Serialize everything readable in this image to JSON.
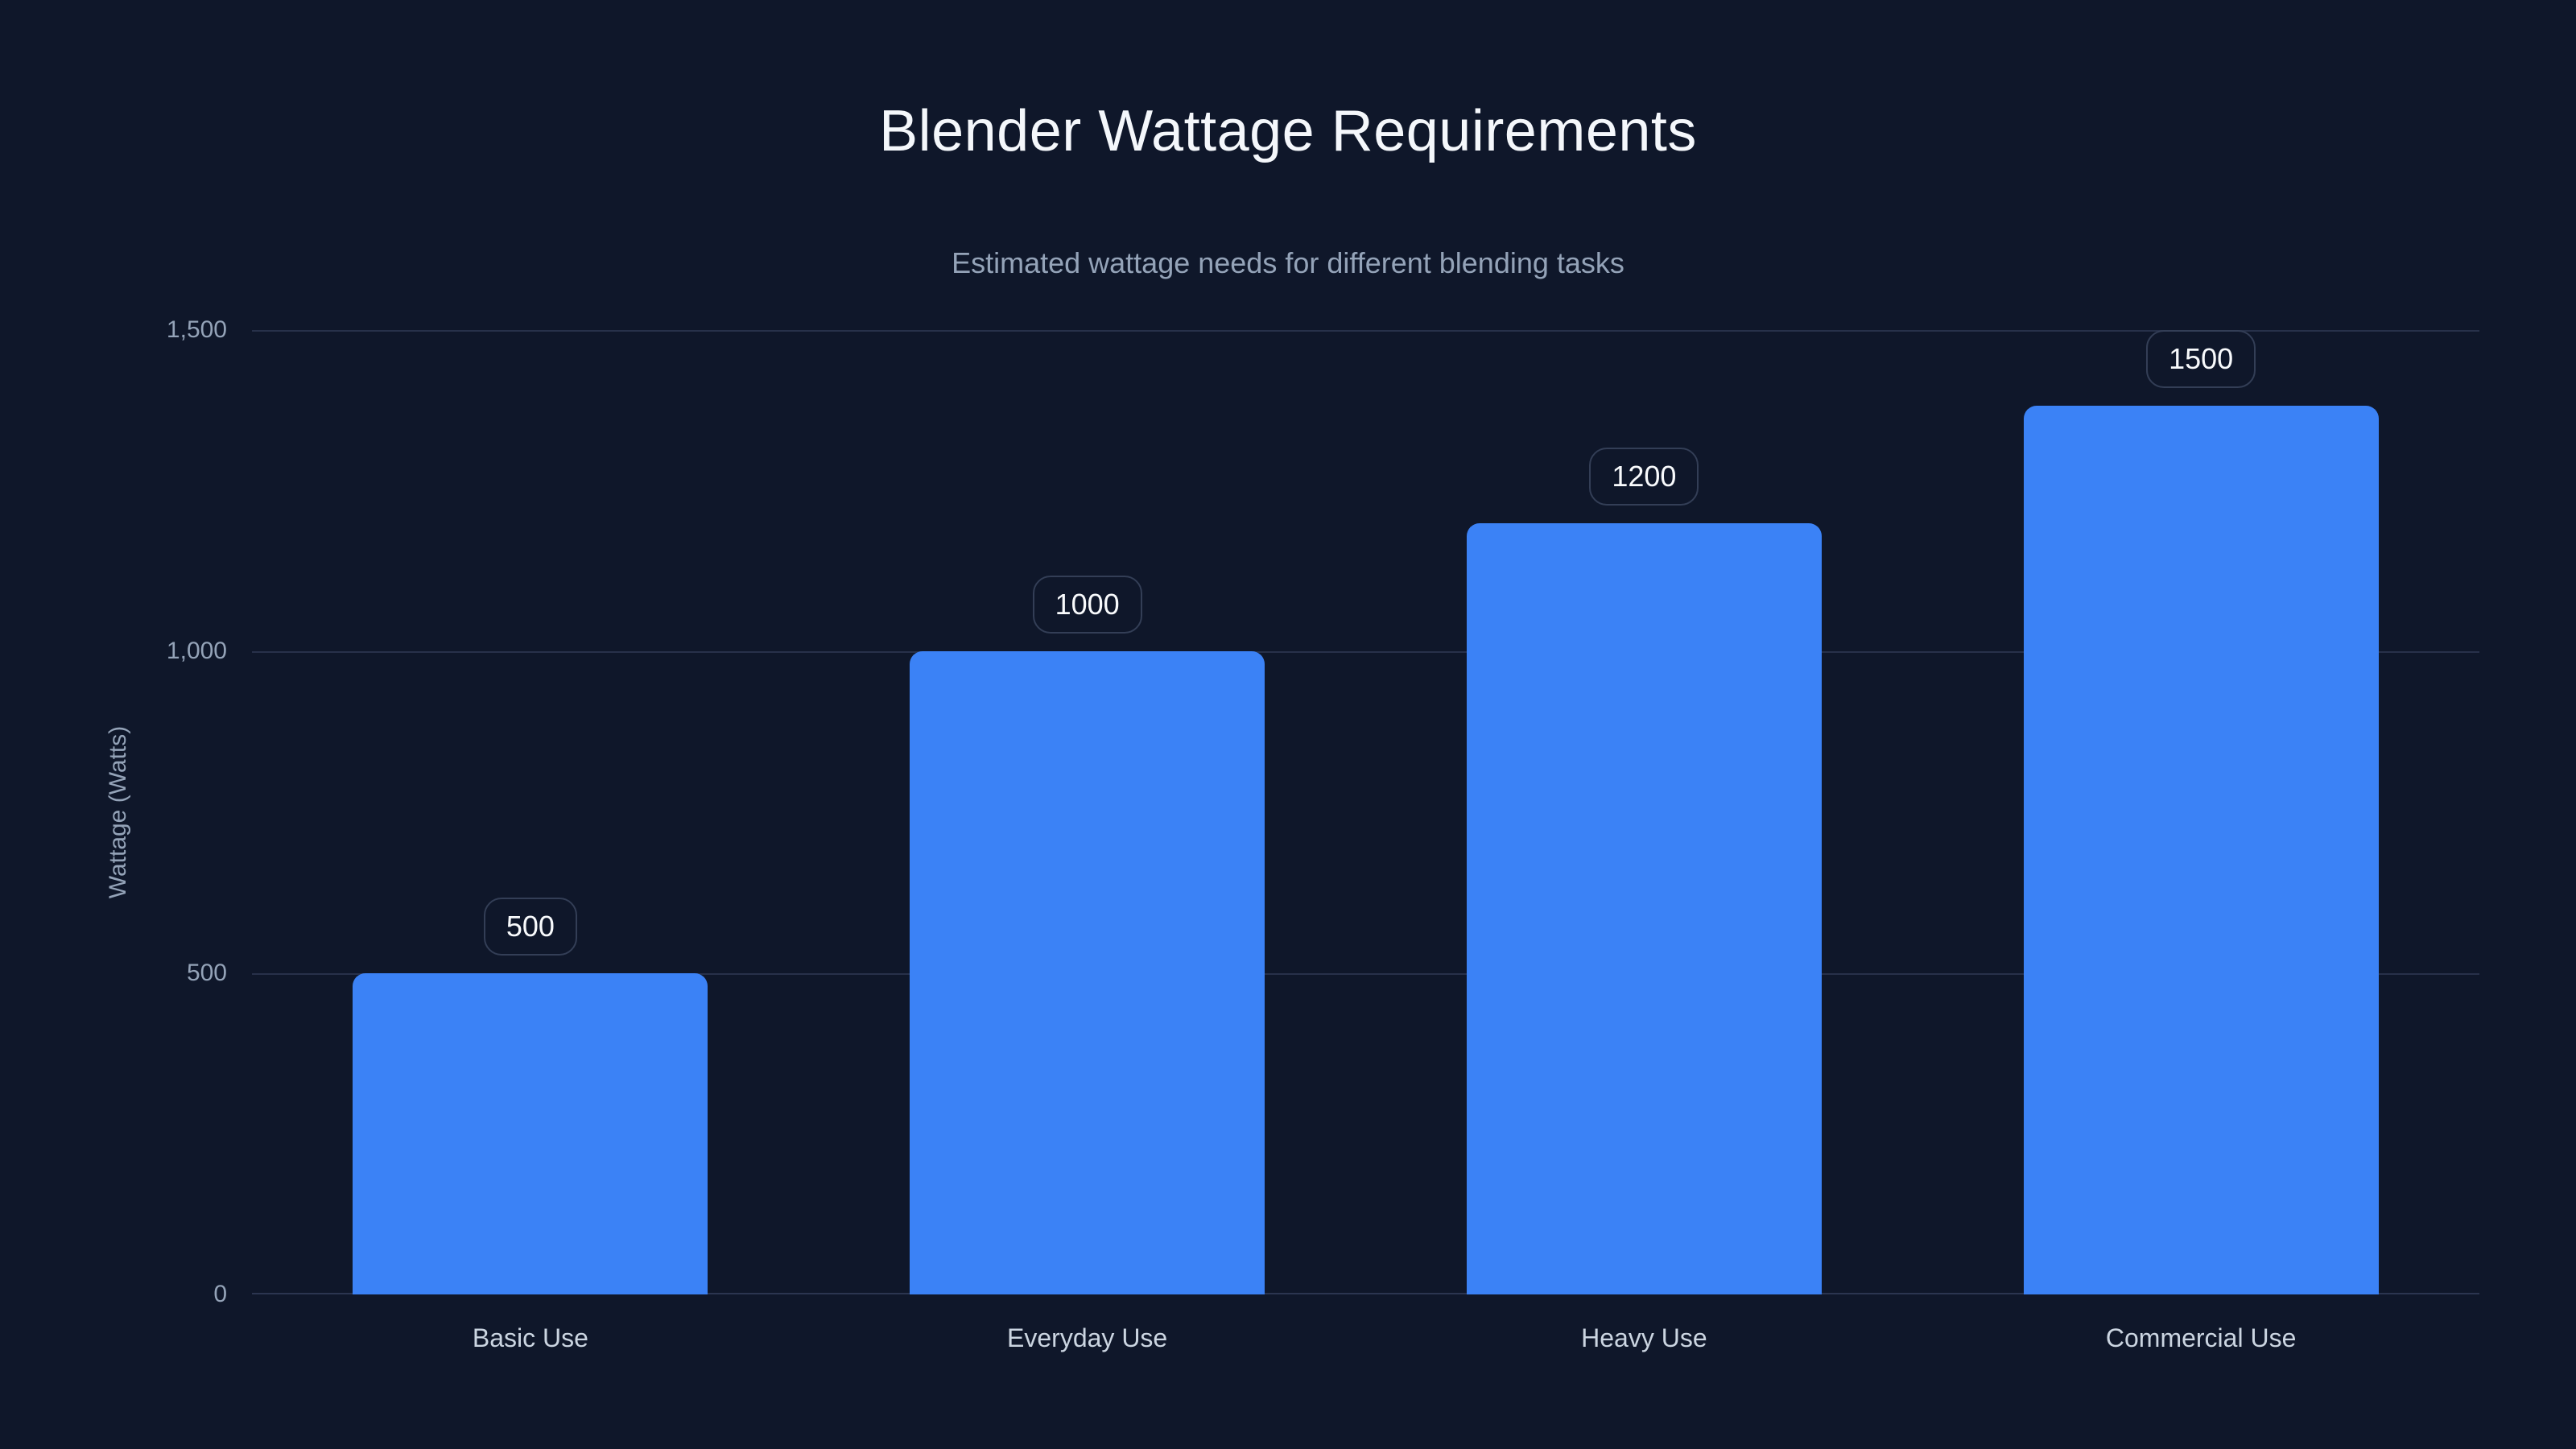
{
  "chart_data": {
    "type": "bar",
    "title": "Blender Wattage Requirements",
    "subtitle": "Estimated wattage needs for different blending tasks",
    "categories": [
      "Basic Use",
      "Everyday Use",
      "Heavy Use",
      "Commercial Use"
    ],
    "values": [
      500,
      1000,
      1200,
      1500
    ],
    "value_labels": [
      "500",
      "1000",
      "1200",
      "1500"
    ],
    "xlabel": "",
    "ylabel": "Wattage (Watts)",
    "ylim": [
      0,
      1500
    ],
    "yticks": [
      0,
      500,
      1000,
      1500
    ],
    "ytick_labels": [
      "0",
      "500",
      "1,000",
      "1,500"
    ],
    "grid": true,
    "legend_position": "none",
    "colors": {
      "background": "#0f172a",
      "bar": "#3b82f6",
      "gridline": "#27314a",
      "title": "#f4f7fb",
      "subtitle": "#94a3b8",
      "tick_label": "#94a3b8",
      "x_label": "#cbd5e1",
      "badge_border": "#333e56",
      "badge_text": "#f8fafc"
    }
  }
}
